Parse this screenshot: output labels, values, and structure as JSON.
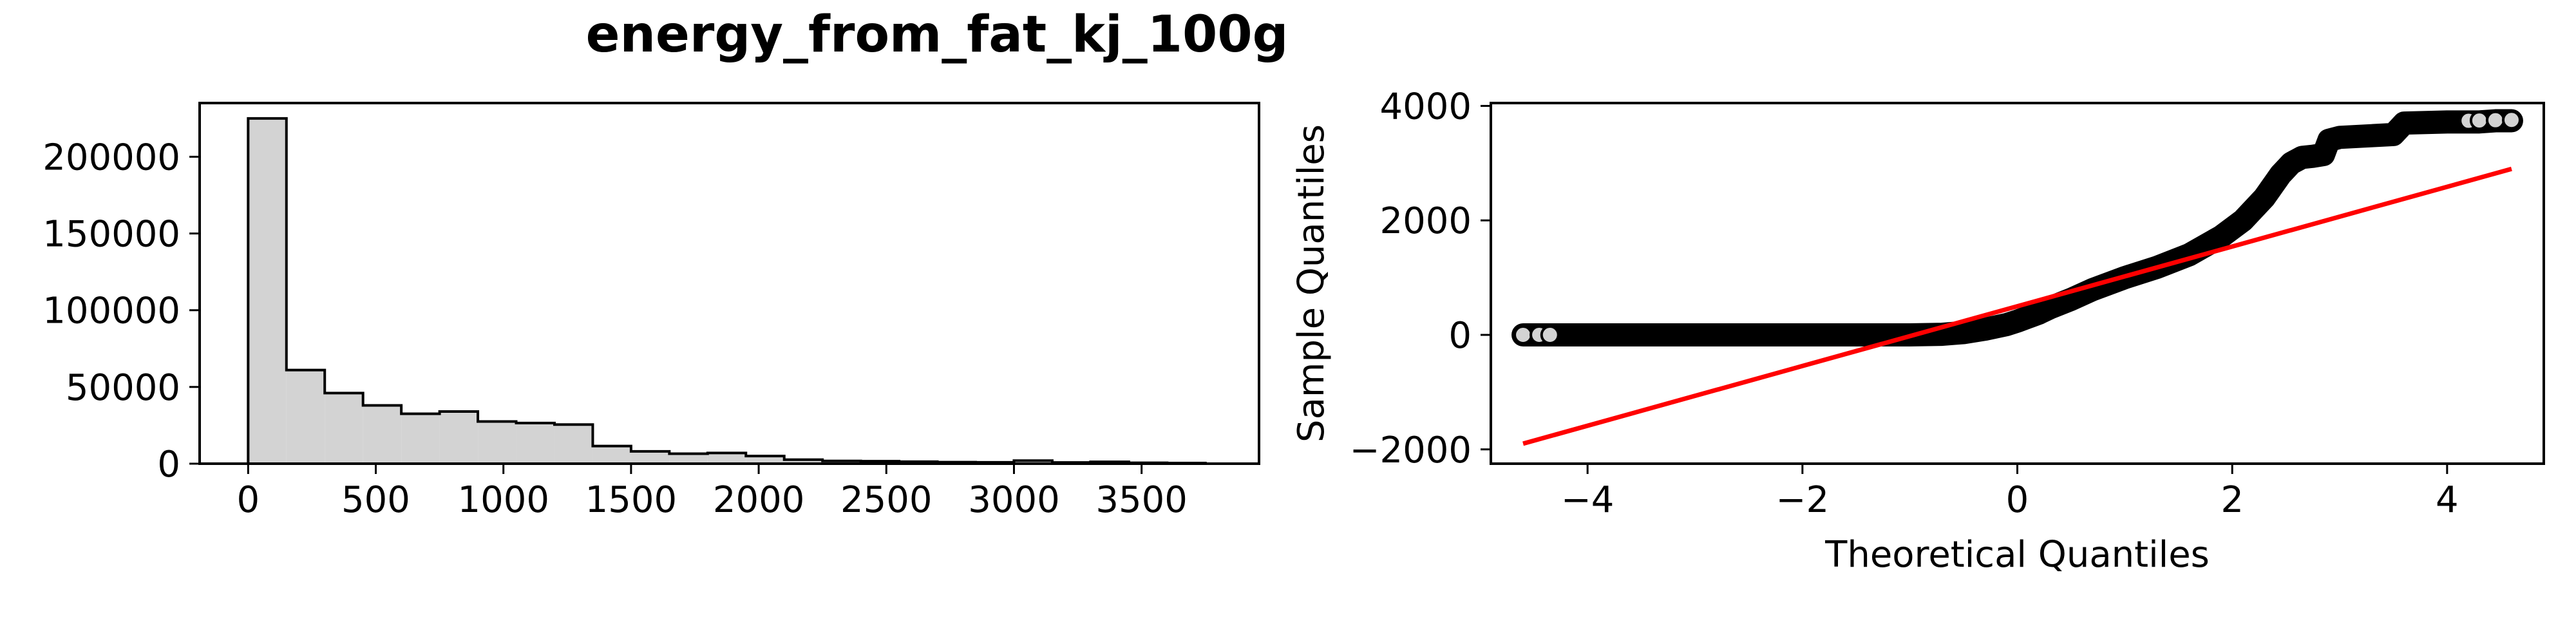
{
  "figure": {
    "title": "energy_from_fat_kj_100g"
  },
  "chart_data": [
    {
      "type": "histogram",
      "title": "",
      "xlabel": "",
      "ylabel": "",
      "xlim": [
        -190,
        3960
      ],
      "ylim": [
        0,
        235000
      ],
      "xticks": [
        0,
        500,
        1000,
        1500,
        2000,
        2500,
        3000,
        3500
      ],
      "yticks": [
        0,
        50000,
        100000,
        150000,
        200000
      ],
      "bin_edges": [
        0,
        150,
        300,
        450,
        600,
        750,
        900,
        1050,
        1200,
        1350,
        1500,
        1650,
        1800,
        1950,
        2100,
        2250,
        2400,
        2550,
        2700,
        2850,
        3000,
        3150,
        3300,
        3450,
        3600,
        3750
      ],
      "counts": [
        225000,
        61000,
        46000,
        38000,
        32500,
        34000,
        27500,
        26500,
        25500,
        11500,
        8000,
        6500,
        7000,
        5000,
        2600,
        1800,
        1600,
        1300,
        1000,
        900,
        2000,
        800,
        1200,
        600,
        400
      ],
      "fill_color": "#d3d3d3",
      "edge_color": "#000000"
    },
    {
      "type": "scatter",
      "title": "",
      "xlabel": "Theoretical Quantiles",
      "ylabel": "Sample Quantiles",
      "xlim": [
        -4.9,
        4.9
      ],
      "ylim": [
        -2250,
        4050
      ],
      "xticks": [
        -4,
        -2,
        0,
        2,
        4
      ],
      "yticks": [
        -2000,
        0,
        2000,
        4000
      ],
      "quantile_curve": {
        "x": [
          -4.6,
          -4.45,
          -4.3,
          -4.0,
          -3.5,
          -3.0,
          -2.5,
          -2.0,
          -1.5,
          -1.0,
          -0.7,
          -0.5,
          -0.3,
          -0.1,
          0.0,
          0.1,
          0.2,
          0.3,
          0.5,
          0.7,
          1.0,
          1.3,
          1.6,
          1.9,
          2.1,
          2.3,
          2.45,
          2.55,
          2.65,
          2.75,
          2.85,
          2.9,
          3.0,
          3.3,
          3.5,
          3.6,
          4.0,
          4.3,
          4.45,
          4.6
        ],
        "y": [
          0,
          0,
          0,
          0,
          0,
          0,
          0,
          0,
          0,
          0,
          10,
          40,
          100,
          180,
          240,
          310,
          380,
          470,
          620,
          790,
          1000,
          1180,
          1400,
          1720,
          2000,
          2400,
          2800,
          3000,
          3100,
          3120,
          3150,
          3400,
          3450,
          3480,
          3500,
          3700,
          3720,
          3720,
          3740,
          3740
        ]
      },
      "end_points": [
        {
          "x": -4.6,
          "y": 0
        },
        {
          "x": -4.45,
          "y": 0
        },
        {
          "x": -4.35,
          "y": 0
        },
        {
          "x": 4.2,
          "y": 3740
        },
        {
          "x": 4.3,
          "y": 3745
        },
        {
          "x": 4.45,
          "y": 3750
        },
        {
          "x": 4.6,
          "y": 3755
        }
      ],
      "reference_line": {
        "x": [
          -4.6,
          4.6
        ],
        "y": [
          -1900,
          2900
        ]
      },
      "marker_color": "#000000",
      "marker_face_color": "#d3d3d3",
      "line_color": "#ff0000"
    }
  ]
}
